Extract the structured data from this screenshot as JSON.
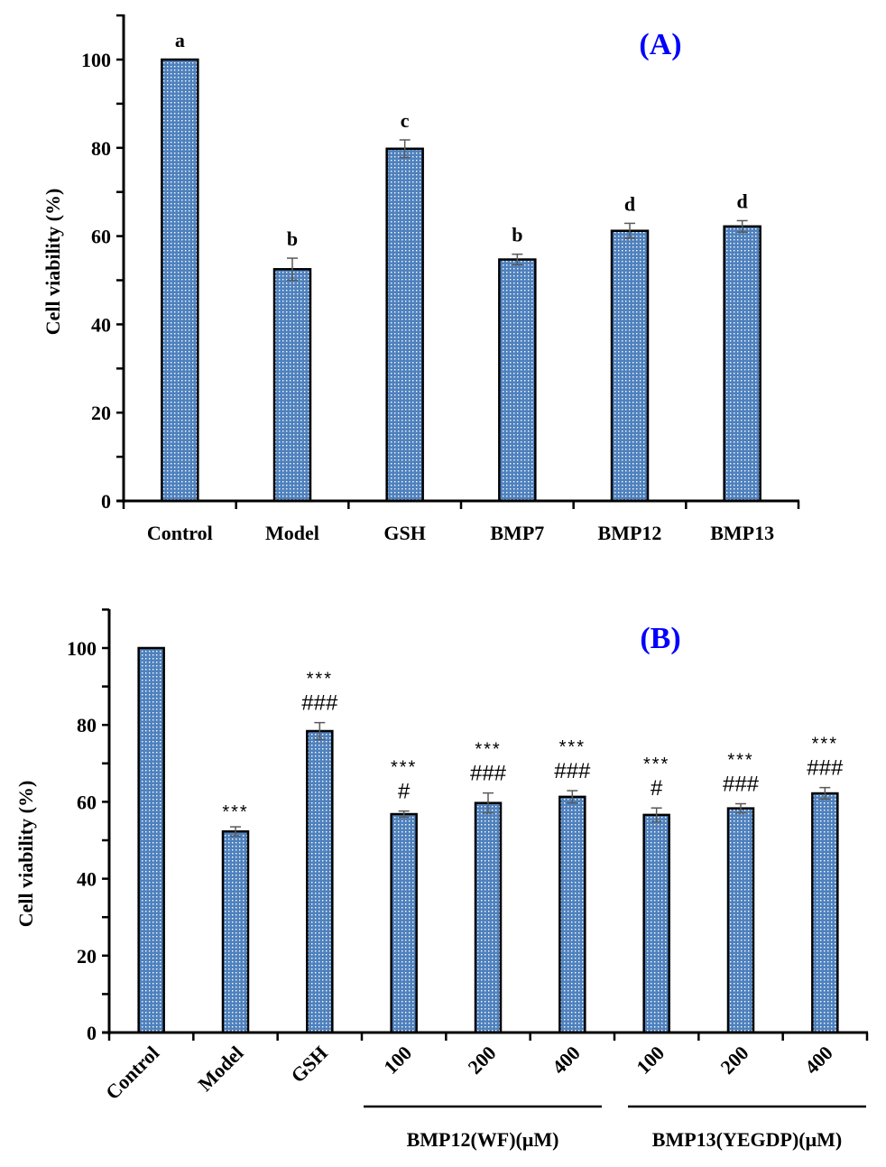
{
  "colors": {
    "bar_fill": "#4f81bd",
    "bar_dot": "#ffffff",
    "bar_stroke": "#000000",
    "error_bar": "#595959",
    "panel_label": "#0000ff"
  },
  "chart_data": [
    {
      "type": "bar",
      "panel_label": "(A)",
      "title": "",
      "xlabel": "",
      "ylabel": "Cell viability (%)",
      "ylim": [
        0,
        110
      ],
      "yticks": [
        0,
        20,
        40,
        60,
        80,
        100
      ],
      "ytick_labels": [
        "0",
        "20",
        "40",
        "60",
        "80",
        "100"
      ],
      "minor_ytick_step": 10,
      "grid": false,
      "categories": [
        "Control",
        "Model",
        "GSH",
        "BMP7",
        "BMP12",
        "BMP13"
      ],
      "values": [
        100,
        52.5,
        79.8,
        54.7,
        61.2,
        62.2
      ],
      "errors": [
        0,
        2.5,
        2.0,
        1.2,
        1.7,
        1.3
      ],
      "annotations": [
        "a",
        "b",
        "c",
        "b",
        "d",
        "d"
      ]
    },
    {
      "type": "bar",
      "panel_label": "(B)",
      "title": "",
      "xlabel": "",
      "ylabel": "Cell viability (%)",
      "ylim": [
        0,
        110
      ],
      "yticks": [
        0,
        20,
        40,
        60,
        80,
        100
      ],
      "ytick_labels": [
        "0",
        "20",
        "40",
        "60",
        "80",
        "100"
      ],
      "minor_ytick_step": 10,
      "grid": false,
      "categories": [
        "Control",
        "Model",
        "GSH",
        "100",
        "200",
        "400",
        "100",
        "200",
        "400"
      ],
      "values": [
        100,
        52.3,
        78.4,
        56.8,
        59.7,
        61.3,
        56.6,
        58.3,
        62.2
      ],
      "errors": [
        0,
        1.2,
        2.2,
        0.8,
        2.6,
        1.6,
        1.8,
        1.2,
        1.5
      ],
      "annotations_stars": [
        "",
        "***",
        "***",
        "***",
        "***",
        "***",
        "***",
        "***",
        "***"
      ],
      "annotations_hash": [
        "",
        "",
        "###",
        "#",
        "###",
        "###",
        "#",
        "###",
        "###"
      ],
      "groups": [
        {
          "label": "BMP12(WF)(μM)",
          "from": 3,
          "to": 5
        },
        {
          "label": "BMP13(YEGDP)(μM)",
          "from": 6,
          "to": 8
        }
      ]
    }
  ]
}
